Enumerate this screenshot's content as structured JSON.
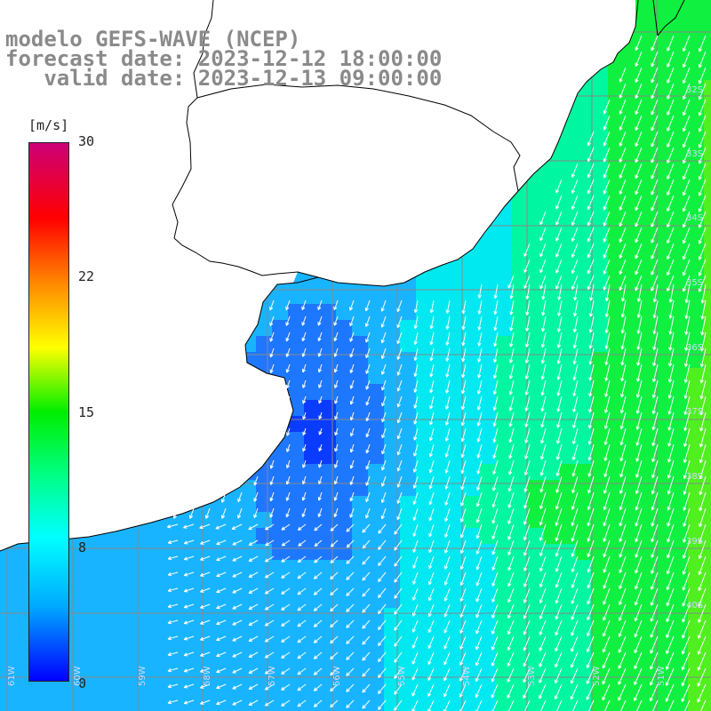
{
  "header": {
    "line1": "modelo GEFS-WAVE (NCEP)",
    "line2": "forecast date: 2023-12-12 18:00:00",
    "line3": "   valid date: 2023-12-13 09:00:00"
  },
  "colorbar": {
    "unit": "[m/s]",
    "ticks": [
      "30",
      "22",
      "15",
      "8",
      "0"
    ],
    "colors": [
      "#0000ff",
      "#00aaff",
      "#00ffff",
      "#00ff88",
      "#00ee00",
      "#ffff00",
      "#ff8800",
      "#ff0000",
      "#cc0077"
    ]
  },
  "lat_labels": [
    "32S",
    "33S",
    "34S",
    "35S",
    "36S",
    "37S",
    "38S",
    "39S",
    "40S"
  ],
  "lon_labels": [
    "61W",
    "60W",
    "59W",
    "58W",
    "57W",
    "56W",
    "55W",
    "54W",
    "53W",
    "52W",
    "51W"
  ],
  "map": {
    "ocean_colors": [
      "#0a3cff",
      "#1e78ff",
      "#19b4ff",
      "#00e8f0",
      "#00f6a0",
      "#10f040",
      "#50f020"
    ],
    "land_color": "#ffffff",
    "coast_color": "#000000",
    "grid_color": "#888888",
    "arrow_color": "#ffffff"
  }
}
